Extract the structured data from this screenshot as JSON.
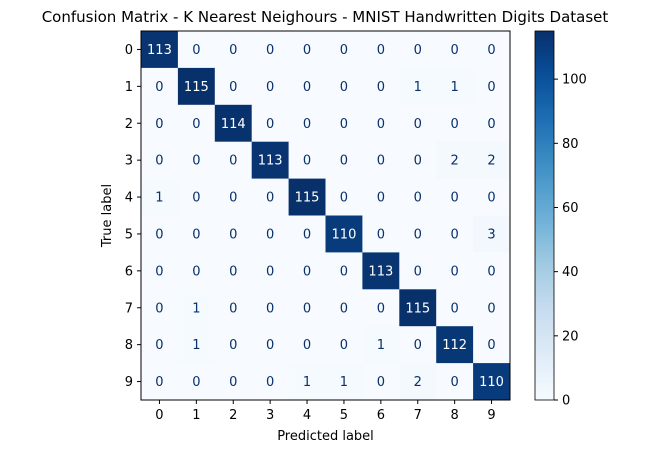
{
  "chart_data": {
    "type": "heatmap",
    "title": "Confusion Matrix - K Nearest Neighours - MNIST Handwritten Digits Dataset",
    "xlabel": "Predicted label",
    "ylabel": "True label",
    "x_categories": [
      "0",
      "1",
      "2",
      "3",
      "4",
      "5",
      "6",
      "7",
      "8",
      "9"
    ],
    "y_categories": [
      "0",
      "1",
      "2",
      "3",
      "4",
      "5",
      "6",
      "7",
      "8",
      "9"
    ],
    "matrix": [
      [
        113,
        0,
        0,
        0,
        0,
        0,
        0,
        0,
        0,
        0
      ],
      [
        0,
        115,
        0,
        0,
        0,
        0,
        0,
        1,
        1,
        0
      ],
      [
        0,
        0,
        114,
        0,
        0,
        0,
        0,
        0,
        0,
        0
      ],
      [
        0,
        0,
        0,
        113,
        0,
        0,
        0,
        0,
        2,
        2
      ],
      [
        1,
        0,
        0,
        0,
        115,
        0,
        0,
        0,
        0,
        0
      ],
      [
        0,
        0,
        0,
        0,
        0,
        110,
        0,
        0,
        0,
        3
      ],
      [
        0,
        0,
        0,
        0,
        0,
        0,
        113,
        0,
        0,
        0
      ],
      [
        0,
        1,
        0,
        0,
        0,
        0,
        0,
        115,
        0,
        0
      ],
      [
        0,
        1,
        0,
        0,
        0,
        0,
        1,
        0,
        112,
        0
      ],
      [
        0,
        0,
        0,
        0,
        1,
        1,
        0,
        2,
        0,
        110
      ]
    ],
    "colormap": "Blues",
    "vmin": 0,
    "vmax": 115,
    "colorbar_ticks": [
      0,
      20,
      40,
      60,
      80,
      100
    ],
    "colors": {
      "low": "#f7fbff",
      "high": "#08306b",
      "text_dark": "#08306b",
      "text_light": "#ffffff"
    }
  }
}
